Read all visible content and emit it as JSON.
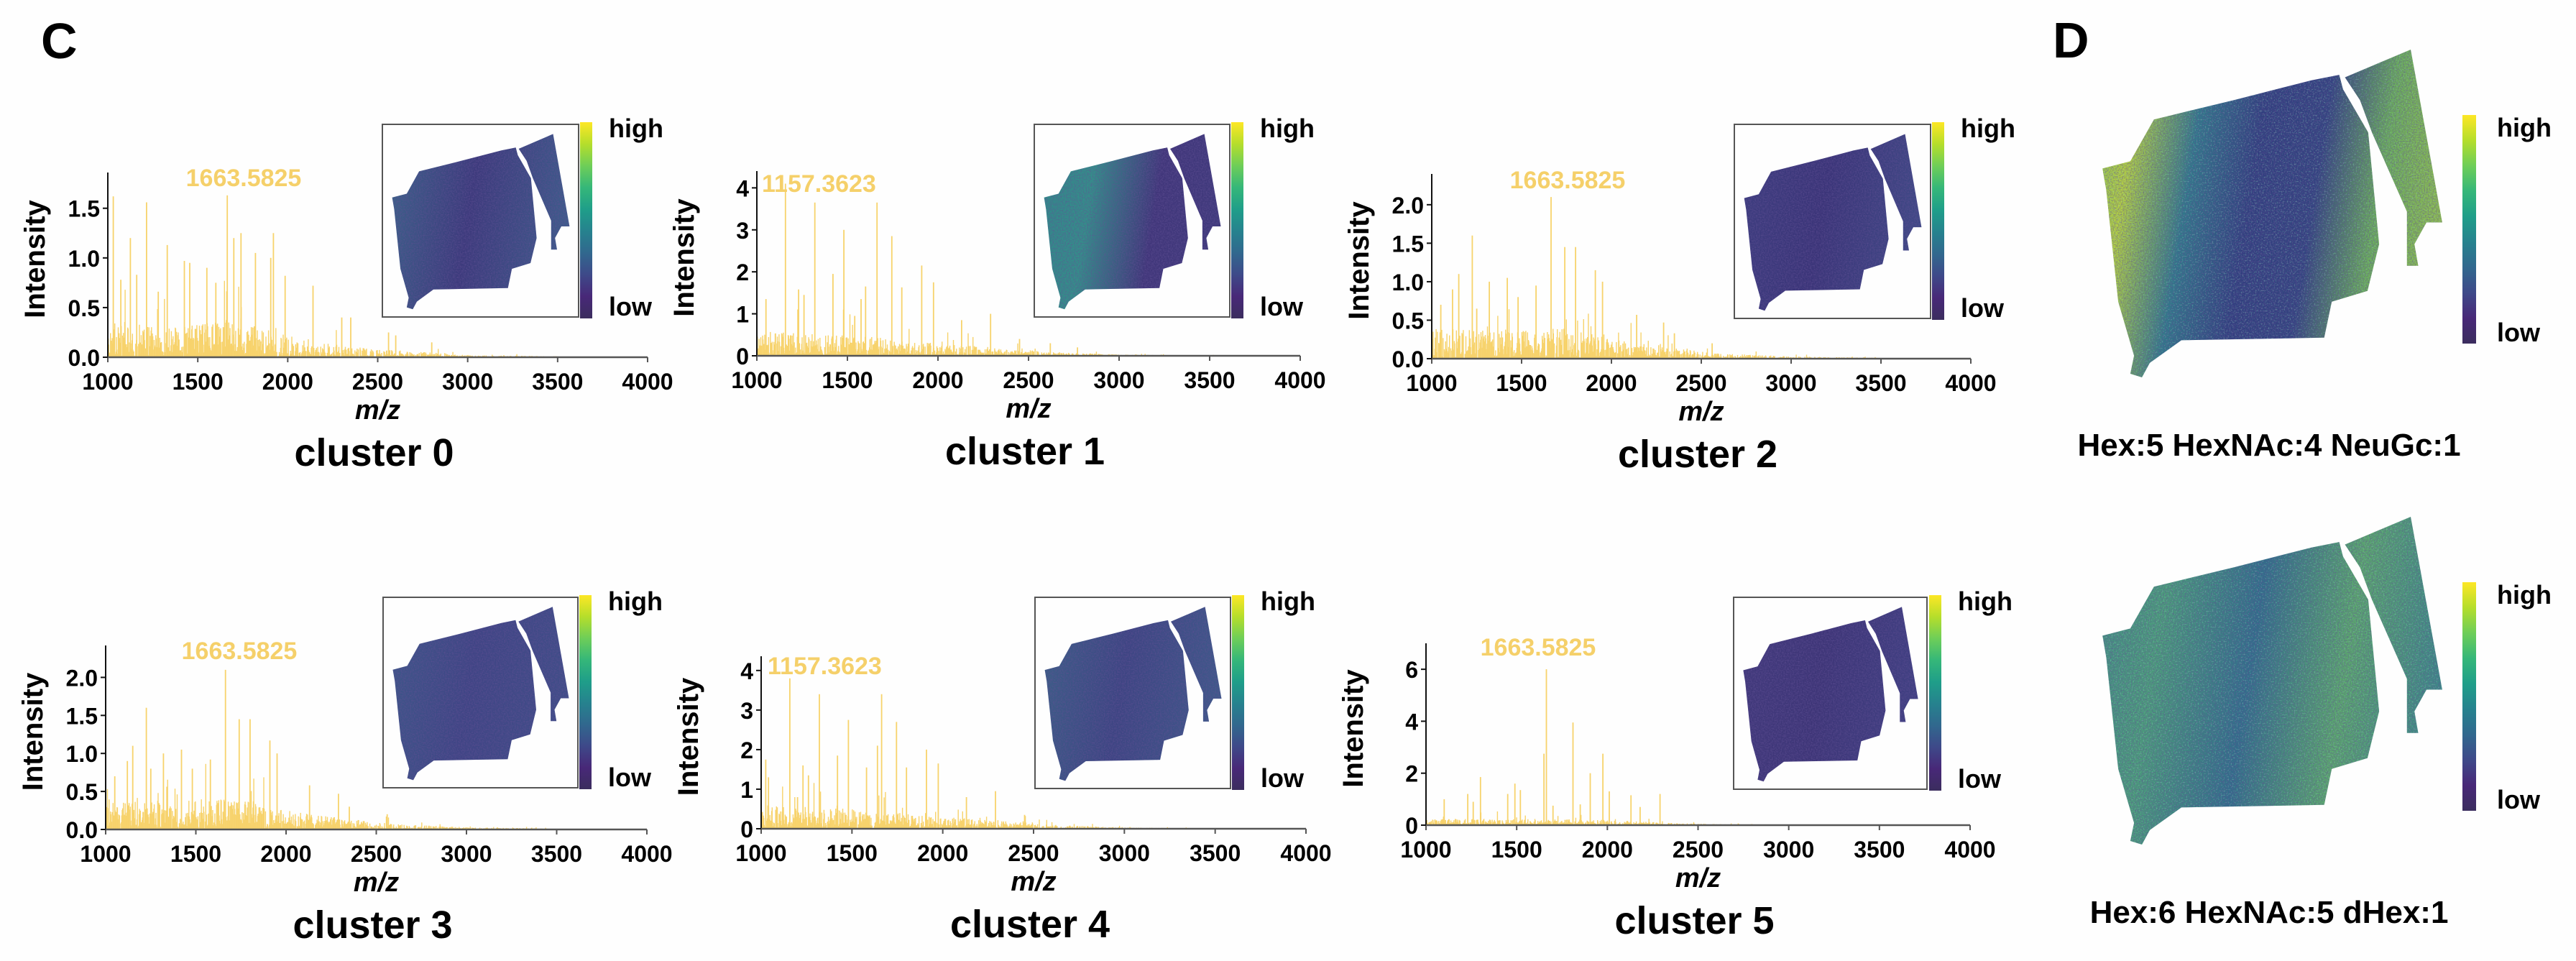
{
  "panels": {
    "C": "C",
    "D": "D"
  },
  "colors": {
    "spectrum": "#f7d36c",
    "annotation": "#f5d06a",
    "axis": "#555555",
    "viridis": [
      "#fde725",
      "#b5de2b",
      "#6ece58",
      "#35b779",
      "#1f9e89",
      "#26828e",
      "#31688e",
      "#3e4989",
      "#482878",
      "#3b2d5e"
    ]
  },
  "chart_data": [
    {
      "type": "bar",
      "title": "cluster 0",
      "xlabel": "m/z",
      "ylabel": "Intensity",
      "xlim": [
        1000,
        4000
      ],
      "xticks": [
        1000,
        1500,
        2000,
        2500,
        3000,
        3500,
        4000
      ],
      "xtick_labels": [
        "1000",
        "1500",
        "2000",
        "2500",
        "3000",
        "3500",
        "4000"
      ],
      "ylim": [
        0,
        1.86
      ],
      "yticks": [
        0,
        0.5,
        1.0,
        1.5
      ],
      "ytick_labels": [
        "0.0",
        "0.5",
        "1.0",
        "1.5"
      ],
      "annotation": "1663.5825",
      "peaks": [
        [
          1030,
          1.62
        ],
        [
          1072,
          0.78
        ],
        [
          1125,
          1.2
        ],
        [
          1160,
          0.83
        ],
        [
          1215,
          1.56
        ],
        [
          1280,
          0.66
        ],
        [
          1330,
          1.13
        ],
        [
          1425,
          0.97
        ],
        [
          1455,
          0.95
        ],
        [
          1550,
          0.9
        ],
        [
          1600,
          0.75
        ],
        [
          1663.5825,
          1.63
        ],
        [
          1700,
          1.2
        ],
        [
          1740,
          1.25
        ],
        [
          1820,
          1.05
        ],
        [
          1905,
          1.0
        ],
        [
          1920,
          1.25
        ],
        [
          1985,
          0.82
        ],
        [
          2140,
          0.72
        ],
        [
          2300,
          0.4
        ],
        [
          2350,
          0.4
        ],
        [
          2560,
          0.25
        ],
        [
          2600,
          0.22
        ],
        [
          2800,
          0.15
        ]
      ],
      "noise_envelope": [
        [
          1000,
          0.35
        ],
        [
          1390,
          0.3
        ],
        [
          1400,
          0.05
        ],
        [
          1430,
          0.35
        ],
        [
          1750,
          0.35
        ],
        [
          2000,
          0.22
        ],
        [
          2200,
          0.15
        ],
        [
          2500,
          0.08
        ],
        [
          2800,
          0.05
        ],
        [
          3000,
          0.02
        ],
        [
          3500,
          0.01
        ],
        [
          4000,
          0
        ]
      ],
      "inset": {
        "high": "high",
        "low": "low",
        "tissue_colors": [
          "#3b6a8c",
          "#3c3a7c",
          "#3d5d8b"
        ]
      }
    },
    {
      "type": "bar",
      "title": "cluster 1",
      "xlabel": "m/z",
      "ylabel": "Intensity",
      "xlim": [
        1000,
        4000
      ],
      "xticks": [
        1000,
        1500,
        2000,
        2500,
        3000,
        3500,
        4000
      ],
      "xtick_labels": [
        "1000",
        "1500",
        "2000",
        "2500",
        "3000",
        "3500",
        "4000"
      ],
      "ylim": [
        0,
        4.4
      ],
      "yticks": [
        0,
        1,
        2,
        3,
        4
      ],
      "ytick_labels": [
        "0",
        "1",
        "2",
        "3",
        "4"
      ],
      "annotation": "1157.3623",
      "peaks": [
        [
          1050,
          1.35
        ],
        [
          1157.3623,
          4.1
        ],
        [
          1230,
          1.58
        ],
        [
          1260,
          1.45
        ],
        [
          1320,
          3.65
        ],
        [
          1420,
          1.95
        ],
        [
          1480,
          3.0
        ],
        [
          1540,
          0.95
        ],
        [
          1575,
          1.35
        ],
        [
          1600,
          1.65
        ],
        [
          1663,
          3.65
        ],
        [
          1745,
          2.85
        ],
        [
          1800,
          1.63
        ],
        [
          1910,
          2.15
        ],
        [
          1975,
          1.75
        ],
        [
          2130,
          0.85
        ],
        [
          2290,
          1.0
        ],
        [
          2450,
          0.4
        ],
        [
          2620,
          0.3
        ],
        [
          2770,
          0.2
        ]
      ],
      "noise_envelope": [
        [
          1000,
          0.6
        ],
        [
          1500,
          0.5
        ],
        [
          2000,
          0.3
        ],
        [
          2300,
          0.2
        ],
        [
          2600,
          0.1
        ],
        [
          3000,
          0.03
        ],
        [
          3500,
          0.01
        ],
        [
          4000,
          0
        ]
      ],
      "inset": {
        "high": "high",
        "low": "low",
        "tissue_colors": [
          "#2f8a8a",
          "#33908a",
          "#40367a",
          "#3f3a7c"
        ]
      }
    },
    {
      "type": "bar",
      "title": "cluster 2",
      "xlabel": "m/z",
      "ylabel": "Intensity",
      "xlim": [
        1000,
        4000
      ],
      "xticks": [
        1000,
        1500,
        2000,
        2500,
        3000,
        3500,
        4000
      ],
      "xtick_labels": [
        "1000",
        "1500",
        "2000",
        "2500",
        "3000",
        "3500",
        "4000"
      ],
      "ylim": [
        0,
        2.4
      ],
      "yticks": [
        0,
        0.5,
        1.0,
        1.5,
        2.0
      ],
      "ytick_labels": [
        "0.0",
        "0.5",
        "1.0",
        "1.5",
        "2.0"
      ],
      "annotation": "1663.5825",
      "peaks": [
        [
          1050,
          0.7
        ],
        [
          1115,
          0.9
        ],
        [
          1150,
          1.1
        ],
        [
          1225,
          1.6
        ],
        [
          1250,
          0.65
        ],
        [
          1320,
          1.0
        ],
        [
          1420,
          1.05
        ],
        [
          1480,
          0.8
        ],
        [
          1580,
          0.95
        ],
        [
          1663.5825,
          2.1
        ],
        [
          1740,
          1.45
        ],
        [
          1800,
          1.45
        ],
        [
          1910,
          1.15
        ],
        [
          1950,
          1.0
        ],
        [
          2140,
          0.57
        ],
        [
          2290,
          0.47
        ],
        [
          2350,
          0.33
        ],
        [
          2560,
          0.2
        ]
      ],
      "noise_envelope": [
        [
          1000,
          0.4
        ],
        [
          1400,
          0.35
        ],
        [
          1750,
          0.4
        ],
        [
          2000,
          0.25
        ],
        [
          2300,
          0.15
        ],
        [
          2600,
          0.07
        ],
        [
          3000,
          0.03
        ],
        [
          3500,
          0.01
        ],
        [
          4000,
          0
        ]
      ],
      "inset": {
        "high": "high",
        "low": "low",
        "tissue_colors": [
          "#3d3f80",
          "#3a3478",
          "#3f4a86"
        ]
      }
    },
    {
      "type": "bar",
      "title": "cluster 3",
      "xlabel": "m/z",
      "ylabel": "Intensity",
      "xlim": [
        1000,
        4000
      ],
      "xticks": [
        1000,
        1500,
        2000,
        2500,
        3000,
        3500,
        4000
      ],
      "xtick_labels": [
        "1000",
        "1500",
        "2000",
        "2500",
        "3000",
        "3500",
        "4000"
      ],
      "ylim": [
        0,
        2.42
      ],
      "yticks": [
        0,
        0.5,
        1.0,
        1.5,
        2.0
      ],
      "ytick_labels": [
        "0.0",
        "0.5",
        "1.0",
        "1.5",
        "2.0"
      ],
      "annotation": "1663.5825",
      "peaks": [
        [
          1050,
          0.7
        ],
        [
          1120,
          0.9
        ],
        [
          1150,
          1.1
        ],
        [
          1225,
          1.6
        ],
        [
          1250,
          0.8
        ],
        [
          1320,
          1.0
        ],
        [
          1420,
          1.05
        ],
        [
          1480,
          0.8
        ],
        [
          1580,
          0.92
        ],
        [
          1663.5825,
          2.1
        ],
        [
          1740,
          1.45
        ],
        [
          1800,
          1.45
        ],
        [
          1910,
          1.17
        ],
        [
          1950,
          1.0
        ],
        [
          2130,
          0.58
        ],
        [
          2290,
          0.47
        ],
        [
          2350,
          0.3
        ],
        [
          2560,
          0.2
        ]
      ],
      "noise_envelope": [
        [
          1000,
          0.4
        ],
        [
          1390,
          0.35
        ],
        [
          1400,
          0.05
        ],
        [
          1420,
          0.4
        ],
        [
          1750,
          0.4
        ],
        [
          2000,
          0.25
        ],
        [
          2300,
          0.15
        ],
        [
          2600,
          0.07
        ],
        [
          3000,
          0.03
        ],
        [
          3500,
          0.01
        ],
        [
          4000,
          0
        ]
      ],
      "inset": {
        "high": "high",
        "low": "low",
        "tissue_colors": [
          "#3d5a8a",
          "#3f4585",
          "#3f4e88"
        ]
      }
    },
    {
      "type": "bar",
      "title": "cluster 4",
      "xlabel": "m/z",
      "ylabel": "Intensity",
      "xlim": [
        1000,
        4000
      ],
      "xticks": [
        1000,
        1500,
        2000,
        2500,
        3000,
        3500,
        4000
      ],
      "xtick_labels": [
        "1000",
        "1500",
        "2000",
        "2500",
        "3000",
        "3500",
        "4000"
      ],
      "ylim": [
        0,
        4.36
      ],
      "yticks": [
        0,
        1,
        2,
        3,
        4
      ],
      "ytick_labels": [
        "0",
        "1",
        "2",
        "3",
        "4"
      ],
      "annotation": "1157.3623",
      "peaks": [
        [
          1025,
          1.75
        ],
        [
          1040,
          1.3
        ],
        [
          1157.3623,
          3.8
        ],
        [
          1200,
          0.8
        ],
        [
          1230,
          1.6
        ],
        [
          1260,
          1.35
        ],
        [
          1320,
          3.4
        ],
        [
          1420,
          1.85
        ],
        [
          1480,
          2.75
        ],
        [
          1580,
          1.55
        ],
        [
          1640,
          2.1
        ],
        [
          1663,
          3.4
        ],
        [
          1745,
          2.7
        ],
        [
          1800,
          1.55
        ],
        [
          1910,
          2.0
        ],
        [
          1975,
          1.65
        ],
        [
          2130,
          0.8
        ],
        [
          2290,
          0.95
        ],
        [
          2450,
          0.35
        ]
      ],
      "noise_envelope": [
        [
          1000,
          0.6
        ],
        [
          1500,
          0.5
        ],
        [
          2000,
          0.3
        ],
        [
          2300,
          0.2
        ],
        [
          2600,
          0.1
        ],
        [
          3000,
          0.03
        ],
        [
          3500,
          0.01
        ],
        [
          4000,
          0
        ]
      ],
      "inset": {
        "high": "high",
        "low": "low",
        "tissue_colors": [
          "#3b6488",
          "#3d4583",
          "#3e5a8a"
        ]
      }
    },
    {
      "type": "bar",
      "title": "cluster 5",
      "xlabel": "m/z",
      "ylabel": "Intensity",
      "xlim": [
        1000,
        4000
      ],
      "xticks": [
        1000,
        1500,
        2000,
        2500,
        3000,
        3500,
        4000
      ],
      "xtick_labels": [
        "1000",
        "1500",
        "2000",
        "2500",
        "3000",
        "3500",
        "4000"
      ],
      "ylim": [
        0,
        7
      ],
      "yticks": [
        0,
        2,
        4,
        6
      ],
      "ytick_labels": [
        "0",
        "2",
        "4",
        "6"
      ],
      "annotation": "1663.5825",
      "peaks": [
        [
          1100,
          1.0
        ],
        [
          1230,
          1.2
        ],
        [
          1260,
          0.9
        ],
        [
          1300,
          1.85
        ],
        [
          1450,
          1.2
        ],
        [
          1490,
          1.6
        ],
        [
          1520,
          1.35
        ],
        [
          1650,
          2.75
        ],
        [
          1663.5825,
          6.0
        ],
        [
          1700,
          0.75
        ],
        [
          1810,
          3.95
        ],
        [
          1850,
          0.8
        ],
        [
          1905,
          2.0
        ],
        [
          1975,
          2.75
        ],
        [
          2010,
          1.3
        ],
        [
          2130,
          1.15
        ],
        [
          2180,
          0.7
        ],
        [
          2290,
          1.2
        ]
      ],
      "noise_envelope": [
        [
          1000,
          0.25
        ],
        [
          1500,
          0.25
        ],
        [
          2000,
          0.2
        ],
        [
          2300,
          0.1
        ],
        [
          2600,
          0.04
        ],
        [
          3000,
          0.01
        ],
        [
          3500,
          0.005
        ],
        [
          4000,
          0
        ]
      ],
      "inset": {
        "high": "high",
        "low": "low",
        "tissue_colors": [
          "#413a7c",
          "#3d3577",
          "#3f4082"
        ]
      }
    }
  ],
  "ion_images": [
    {
      "title": "Hex:5 HexNAc:4 NeuGc:1",
      "high": "high",
      "low": "low",
      "tissue_colors": [
        "#7fc25a",
        "#b5d440",
        "#2f7a8a",
        "#2f3f7e",
        "#31437f",
        "#6bb15a",
        "#8fc24e"
      ]
    },
    {
      "title": "Hex:6 HexNAc:5 dHex:1",
      "high": "high",
      "low": "low",
      "tissue_colors": [
        "#3f8a86",
        "#4aa07a",
        "#2f6f8a",
        "#5aab6c",
        "#3b8a86"
      ]
    }
  ]
}
